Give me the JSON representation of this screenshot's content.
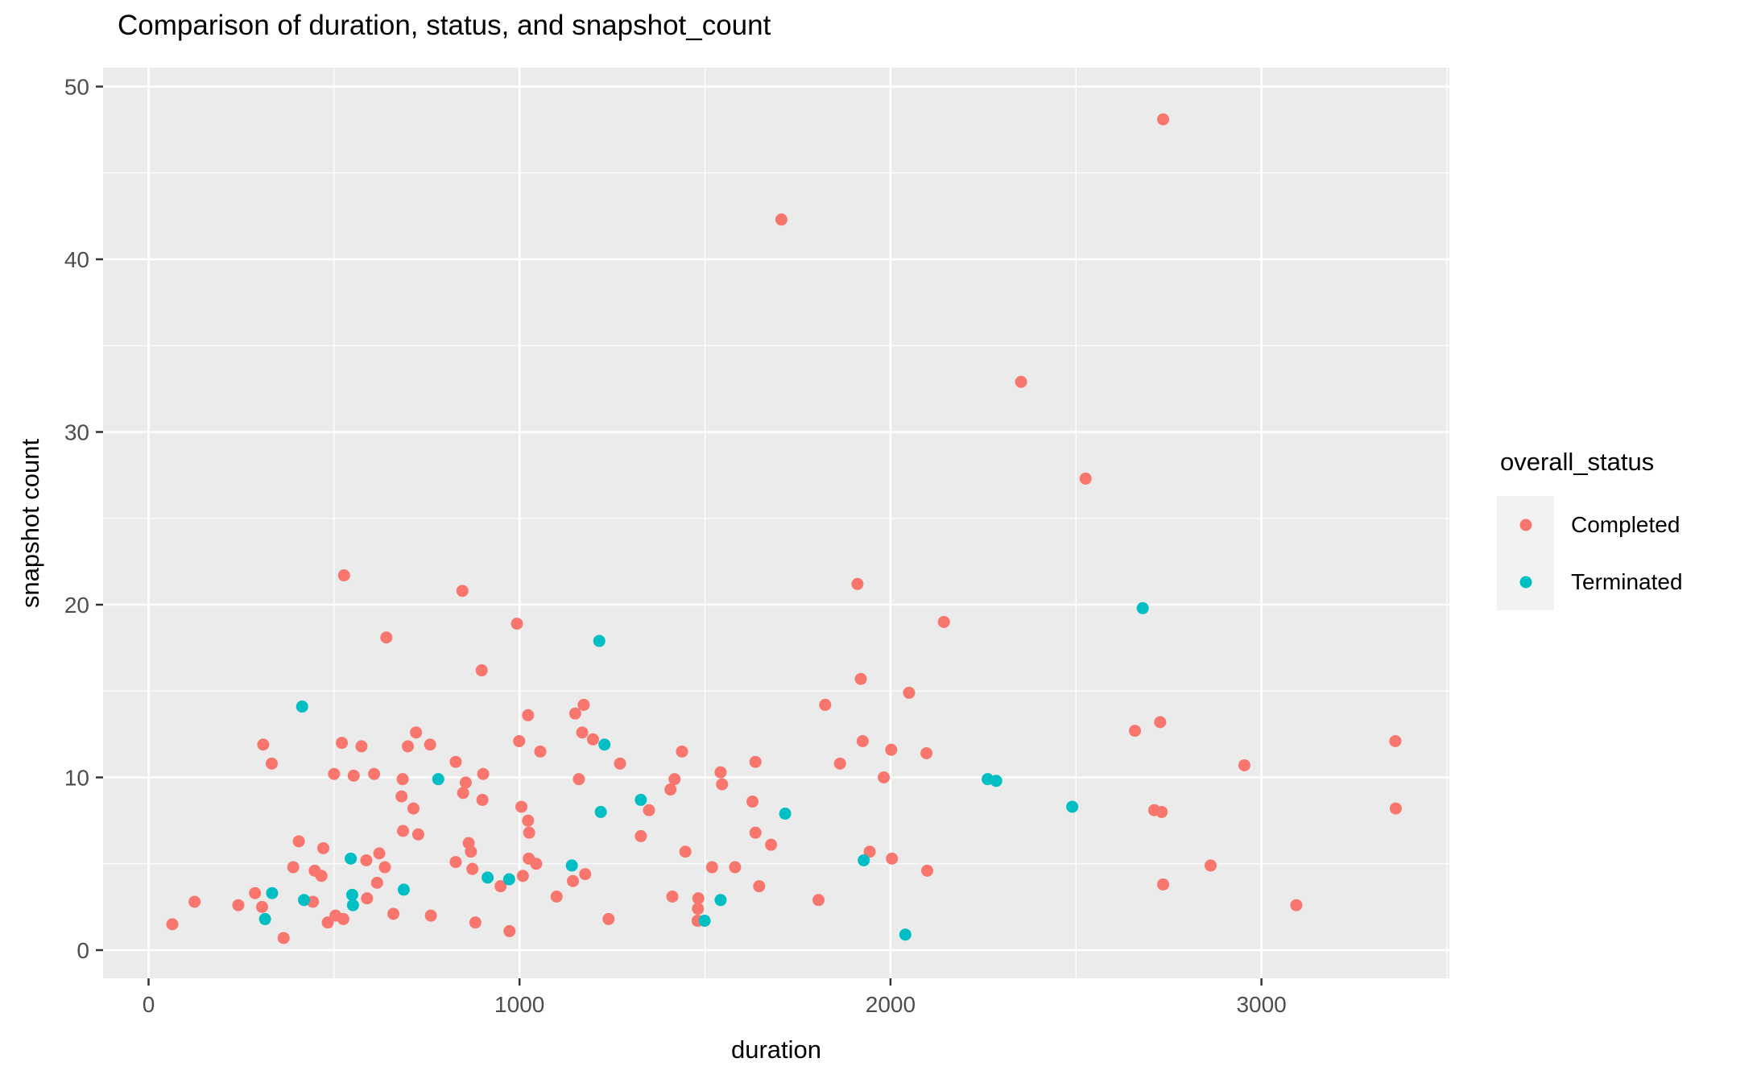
{
  "chart_data": {
    "type": "scatter",
    "title": "Comparison of duration, status, and snapshot_count",
    "xlabel": "duration",
    "ylabel": "snapshot count",
    "x_ticks": [
      0,
      1000,
      2000,
      3000
    ],
    "x_minor_gridlines": [
      500,
      1500,
      2500,
      3500
    ],
    "y_ticks": [
      0,
      10,
      20,
      30,
      40,
      50
    ],
    "y_minor_gridlines": [
      5,
      15,
      25,
      35,
      45
    ],
    "xlim": [
      -122,
      3506
    ],
    "ylim": [
      -1.6,
      51.1
    ],
    "grid": true,
    "panel_color": "#EBEBEB",
    "gridline_color": "#FFFFFF",
    "tick_text_color": "#4D4D4D",
    "tick_mark_color": "#333333",
    "legend": {
      "title": "overall_status",
      "position": "right",
      "entries": [
        {
          "label": "Completed",
          "color": "#F8766D"
        },
        {
          "label": "Terminated",
          "color": "#00BFC4"
        }
      ]
    },
    "series": [
      {
        "name": "Completed",
        "color": "#F8766D",
        "points": [
          [
            1706,
            42.3
          ],
          [
            2735,
            48.1
          ],
          [
            2352,
            32.9
          ],
          [
            2526,
            27.3
          ],
          [
            527,
            21.7
          ],
          [
            846,
            20.8
          ],
          [
            641,
            18.1
          ],
          [
            898,
            16.2
          ],
          [
            309,
            11.9
          ],
          [
            521,
            12.0
          ],
          [
            574,
            11.8
          ],
          [
            721,
            12.6
          ],
          [
            699,
            11.8
          ],
          [
            759,
            11.9
          ],
          [
            993,
            18.9
          ],
          [
            1911,
            21.2
          ],
          [
            1920,
            15.7
          ],
          [
            1824,
            14.2
          ],
          [
            1173,
            14.2
          ],
          [
            1150,
            13.7
          ],
          [
            1023,
            13.6
          ],
          [
            1169,
            12.6
          ],
          [
            1198,
            12.2
          ],
          [
            999,
            12.1
          ],
          [
            1056,
            11.5
          ],
          [
            1438,
            11.5
          ],
          [
            2144,
            19.0
          ],
          [
            2050,
            14.9
          ],
          [
            2659,
            12.7
          ],
          [
            2727,
            13.2
          ],
          [
            1925,
            12.1
          ],
          [
            2002,
            11.6
          ],
          [
            2097,
            11.4
          ],
          [
            332,
            10.8
          ],
          [
            500,
            10.2
          ],
          [
            553,
            10.1
          ],
          [
            608,
            10.2
          ],
          [
            685,
            9.9
          ],
          [
            682,
            8.9
          ],
          [
            828,
            10.9
          ],
          [
            855,
            9.7
          ],
          [
            848,
            9.1
          ],
          [
            900,
            8.7
          ],
          [
            902,
            10.2
          ],
          [
            714,
            8.2
          ],
          [
            686,
            6.9
          ],
          [
            727,
            6.7
          ],
          [
            405,
            6.3
          ],
          [
            471,
            5.9
          ],
          [
            390,
            4.8
          ],
          [
            448,
            4.6
          ],
          [
            466,
            4.3
          ],
          [
            587,
            5.2
          ],
          [
            622,
            5.6
          ],
          [
            637,
            4.8
          ],
          [
            616,
            3.9
          ],
          [
            589,
            3.0
          ],
          [
            483,
            1.6
          ],
          [
            504,
            2.0
          ],
          [
            525,
            1.8
          ],
          [
            364,
            0.7
          ],
          [
            306,
            2.5
          ],
          [
            287,
            3.3
          ],
          [
            242,
            2.6
          ],
          [
            124,
            2.8
          ],
          [
            64,
            1.5
          ],
          [
            949,
            3.7
          ],
          [
            973,
            1.1
          ],
          [
            1271,
            10.8
          ],
          [
            1160,
            9.9
          ],
          [
            1418,
            9.9
          ],
          [
            1407,
            9.3
          ],
          [
            1349,
            8.1
          ],
          [
            1005,
            8.3
          ],
          [
            1023,
            7.5
          ],
          [
            1026,
            6.8
          ],
          [
            1327,
            6.6
          ],
          [
            1447,
            5.7
          ],
          [
            1542,
            10.3
          ],
          [
            1546,
            9.6
          ],
          [
            1636,
            10.9
          ],
          [
            1864,
            10.8
          ],
          [
            1628,
            8.6
          ],
          [
            1636,
            6.8
          ],
          [
            1678,
            6.1
          ],
          [
            1519,
            4.8
          ],
          [
            1581,
            4.8
          ],
          [
            1646,
            3.7
          ],
          [
            1412,
            3.1
          ],
          [
            1482,
            3.0
          ],
          [
            1481,
            2.4
          ],
          [
            1480,
            1.7
          ],
          [
            1240,
            1.8
          ],
          [
            1982,
            10.0
          ],
          [
            2711,
            8.1
          ],
          [
            2731,
            8.0
          ],
          [
            1944,
            5.7
          ],
          [
            2004,
            5.3
          ],
          [
            2099,
            4.6
          ],
          [
            2735,
            3.8
          ],
          [
            2863,
            4.9
          ],
          [
            2954,
            10.7
          ],
          [
            3361,
            12.1
          ],
          [
            3362,
            8.2
          ],
          [
            3094,
            2.6
          ],
          [
            863,
            6.2
          ],
          [
            869,
            5.7
          ],
          [
            828,
            5.1
          ],
          [
            873,
            4.7
          ],
          [
            881,
            1.6
          ],
          [
            761,
            2.0
          ],
          [
            660,
            2.1
          ],
          [
            443,
            2.8
          ],
          [
            1025,
            5.3
          ],
          [
            1045,
            5.0
          ],
          [
            1144,
            4.0
          ],
          [
            1177,
            4.4
          ],
          [
            1100,
            3.1
          ],
          [
            1009,
            4.3
          ],
          [
            1806,
            2.9
          ]
        ]
      },
      {
        "name": "Terminated",
        "color": "#00BFC4",
        "points": [
          [
            414,
            14.1
          ],
          [
            1215,
            17.9
          ],
          [
            1229,
            11.9
          ],
          [
            2680,
            19.8
          ],
          [
            781,
            9.9
          ],
          [
            545,
            5.3
          ],
          [
            549,
            3.2
          ],
          [
            551,
            2.6
          ],
          [
            314,
            1.8
          ],
          [
            1327,
            8.7
          ],
          [
            1219,
            8.0
          ],
          [
            1716,
            7.9
          ],
          [
            1542,
            2.9
          ],
          [
            1499,
            1.7
          ],
          [
            914,
            4.2
          ],
          [
            2262,
            9.9
          ],
          [
            2285,
            9.8
          ],
          [
            2490,
            8.3
          ],
          [
            1928,
            5.2
          ],
          [
            2040,
            0.9
          ],
          [
            333,
            3.3
          ],
          [
            419,
            2.9
          ],
          [
            688,
            3.5
          ],
          [
            972,
            4.1
          ],
          [
            1141,
            4.9
          ]
        ]
      }
    ]
  }
}
